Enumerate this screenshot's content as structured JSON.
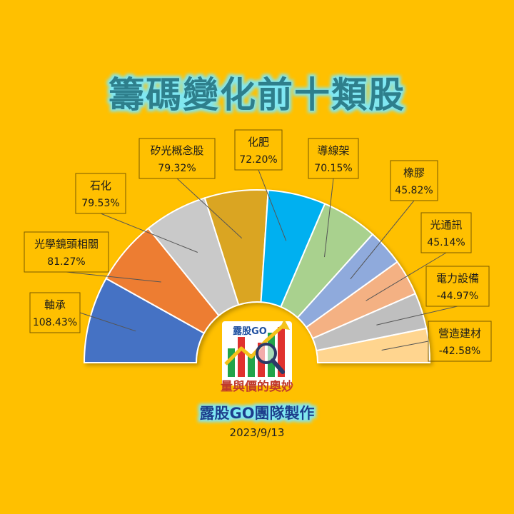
{
  "title": "籌碼變化前十類股",
  "credit": "露股GO團隊製作",
  "date": "2023/9/13",
  "logo": {
    "top_text": "露股GO",
    "bottom_text": "量與價的奧妙"
  },
  "colors": {
    "background": "#FFC000",
    "title_fill": "#2E7F8C",
    "title_glow": "#7FE8F4"
  },
  "chart_data": {
    "type": "pie",
    "subtype": "half-donut",
    "title": "籌碼變化前十類股",
    "categories": [
      "軸承",
      "光學鏡頭相關",
      "石化",
      "矽光概念股",
      "化肥",
      "導線架",
      "橡膠",
      "光通訊",
      "電力設備",
      "營造建材"
    ],
    "values": [
      108.43,
      81.27,
      79.53,
      79.32,
      72.2,
      70.15,
      45.82,
      45.14,
      -44.97,
      -42.58
    ],
    "labels": [
      "108.43%",
      "81.27%",
      "79.53%",
      "79.32%",
      "72.20%",
      "70.15%",
      "45.82%",
      "45.14%",
      "-44.97%",
      "-42.58%"
    ],
    "colors": [
      "#4472C4",
      "#ED7D31",
      "#C9C9C9",
      "#DAA520",
      "#00B0F0",
      "#A9D18E",
      "#8FAADC",
      "#F4B183",
      "#BFBFBF",
      "#FFD58F"
    ]
  }
}
